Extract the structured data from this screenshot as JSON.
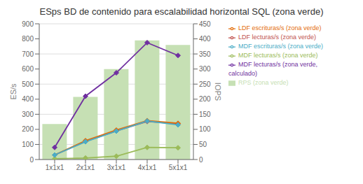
{
  "chart_data": {
    "type": "bar",
    "title": "ESps BD de contenido para escalabilidad horizontal SQL (zona verde)",
    "categories": [
      "1x1x1",
      "2x1x1",
      "3x1x1",
      "4x1x1",
      "5x1x1"
    ],
    "series": [
      {
        "name": "RPS (zona verde)",
        "type": "bar",
        "color": "#c6e0b4",
        "values": [
          235,
          415,
          600,
          790,
          760
        ]
      },
      {
        "name": "LDF lecturas/s (zona verde)",
        "type": "line",
        "marker": "diamond",
        "color": "#c0504d",
        "values": [
          30,
          120,
          190,
          252,
          237
        ]
      },
      {
        "name": "LDF escrituras/s (zona verde)",
        "type": "line",
        "marker": "diamond",
        "color": "#e36c09",
        "values": [
          30,
          125,
          195,
          258,
          240
        ]
      },
      {
        "name": "MDF lecturas/s (zona verde)",
        "type": "line",
        "marker": "diamond",
        "color": "#9bbb59",
        "values": [
          5,
          10,
          22,
          80,
          78
        ]
      },
      {
        "name": "MDF lecturas/s (zona verde, calculado)",
        "type": "line",
        "marker": "diamond",
        "color": "#7030a0",
        "values": [
          80,
          420,
          575,
          775,
          690
        ]
      },
      {
        "name": "MDF escrituras/s (zona verde)",
        "type": "line",
        "marker": "diamond",
        "color": "#4bacc6",
        "values": [
          30,
          118,
          188,
          255,
          230
        ]
      }
    ],
    "ylabel": "ES/s",
    "y2label": "IOPS",
    "ylim": [
      0,
      900
    ],
    "yticks": [
      0,
      100,
      200,
      300,
      400,
      500,
      600,
      700,
      800,
      900
    ],
    "y2lim": [
      0,
      450
    ],
    "y2ticks": [
      0,
      50,
      100,
      150,
      200,
      250,
      300,
      350,
      400,
      450
    ],
    "grid": true,
    "legend": "right"
  }
}
